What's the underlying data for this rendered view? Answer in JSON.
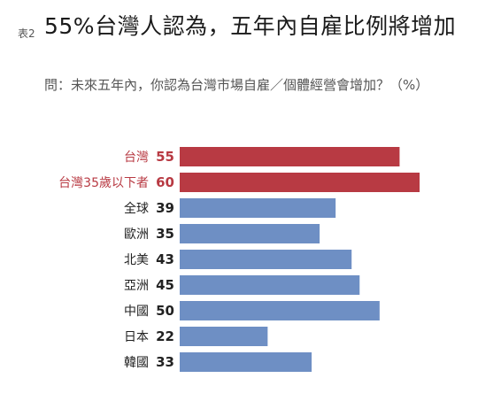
{
  "header": {
    "figure_tag": "表2",
    "title": "55%台灣人認為，五年內自雇比例將增加",
    "subtitle": "問：未來五年內，你認為台灣市場自雇／個體經營會增加？（%）"
  },
  "chart_data": {
    "type": "bar",
    "orientation": "horizontal",
    "title": "55%台灣人認為，五年內自雇比例將增加",
    "subtitle": "問：未來五年內，你認為台灣市場自雇／個體經營會增加？（%）",
    "xlabel": "",
    "ylabel": "",
    "categories": [
      "台灣",
      "台灣35歲以下者",
      "全球",
      "歐洲",
      "北美",
      "亞洲",
      "中國",
      "日本",
      "韓國"
    ],
    "values": [
      55,
      60,
      39,
      35,
      43,
      45,
      50,
      22,
      33
    ],
    "highlight": [
      true,
      true,
      false,
      false,
      false,
      false,
      false,
      false,
      false
    ],
    "xlim": [
      0,
      60
    ],
    "grid": false,
    "legend": "none",
    "colors": {
      "highlight": "#b83a43",
      "default": "#6e8fc4",
      "highlight_text": "#b83a43",
      "default_text": "#222222"
    }
  }
}
